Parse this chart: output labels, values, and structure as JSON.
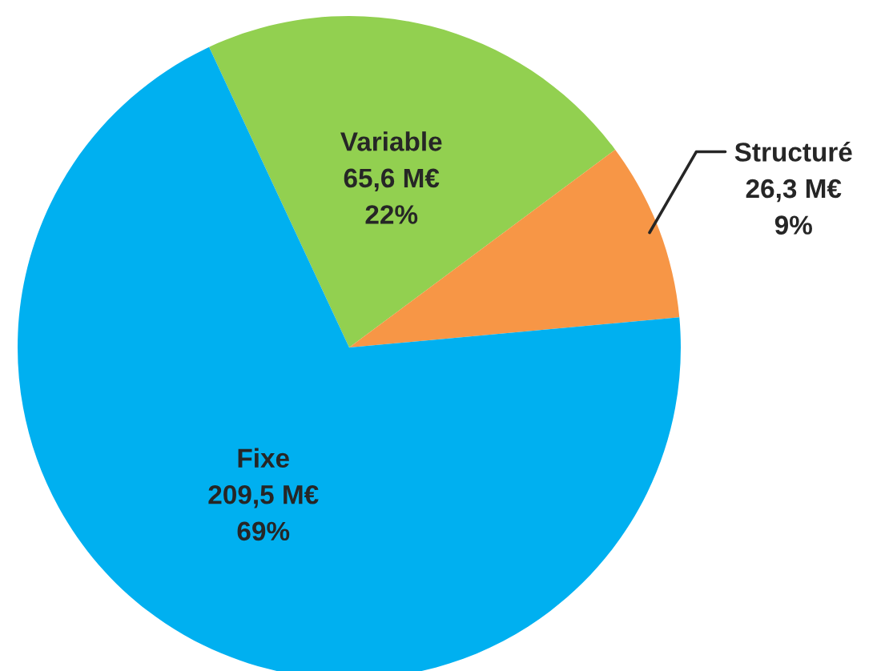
{
  "chart_data": {
    "type": "pie",
    "categories": [
      "Variable",
      "Structuré",
      "Fixe"
    ],
    "values": [
      65.6,
      26.3,
      209.5
    ],
    "colors": [
      "#92d050",
      "#f79646",
      "#00b0f0"
    ],
    "value_labels": [
      "65,6 M€\n22%",
      "26,3 M€\n9%",
      "209,5 M€\n69%"
    ]
  }
}
